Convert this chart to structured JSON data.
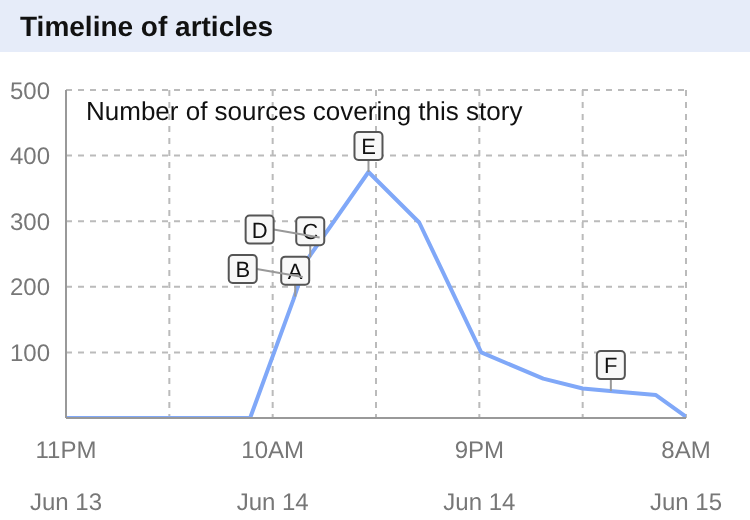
{
  "chart_data": {
    "type": "line",
    "title": "Timeline of articles",
    "subtitle": "Number of sources covering this story",
    "x": [
      "--06-13T23:00",
      "--06-14T08:48",
      "--06-14T11:06",
      "--06-14T11:48",
      "--06-14T15:06",
      "--06-14T17:48",
      "--06-14T21:06",
      "--06-15T00:24",
      "--06-15T02:30",
      "--06-15T04:24",
      "--06-15T06:24",
      "--06-15T08:00"
    ],
    "series": [
      {
        "color": "#80a8f8",
        "values": [
          0,
          0,
          180,
          240,
          375,
          298,
          100,
          60,
          45,
          40,
          35,
          2
        ]
      }
    ],
    "xlim": [
      "--06-13T23:00",
      "--06-15T08:00"
    ],
    "xticks": [
      {
        "value": "--06-13T23:00",
        "label": "11PM\nJun 13"
      },
      {
        "value": "--06-14T04:30",
        "label": null
      },
      {
        "value": "--06-14T10:00",
        "label": "10AM\nJun 14"
      },
      {
        "value": "--06-14T15:30",
        "label": null
      },
      {
        "value": "--06-14T21:00",
        "label": "9PM\nJun 14"
      },
      {
        "value": "--06-15T02:30",
        "label": null
      },
      {
        "value": "--06-15T08:00",
        "label": "8AM\nJun 15"
      }
    ],
    "ylim": [
      0,
      500
    ],
    "yticks": [
      100,
      200,
      300,
      400,
      500
    ],
    "grid": true,
    "marker": "none",
    "line_style": "solid",
    "legend": false,
    "annotations": [
      {
        "text": "A",
        "x": "--06-14T11:12",
        "y": 185
      },
      {
        "text": "B",
        "x": "--06-14T11:36",
        "y": 215
      },
      {
        "text": "C",
        "x": "--06-14T12:00",
        "y": 245
      },
      {
        "text": "D",
        "x": "--06-14T12:30",
        "y": 275
      },
      {
        "text": "E",
        "x": "--06-14T15:06",
        "y": 375
      },
      {
        "text": "F",
        "x": "--06-15T04:00",
        "y": 41
      }
    ]
  }
}
